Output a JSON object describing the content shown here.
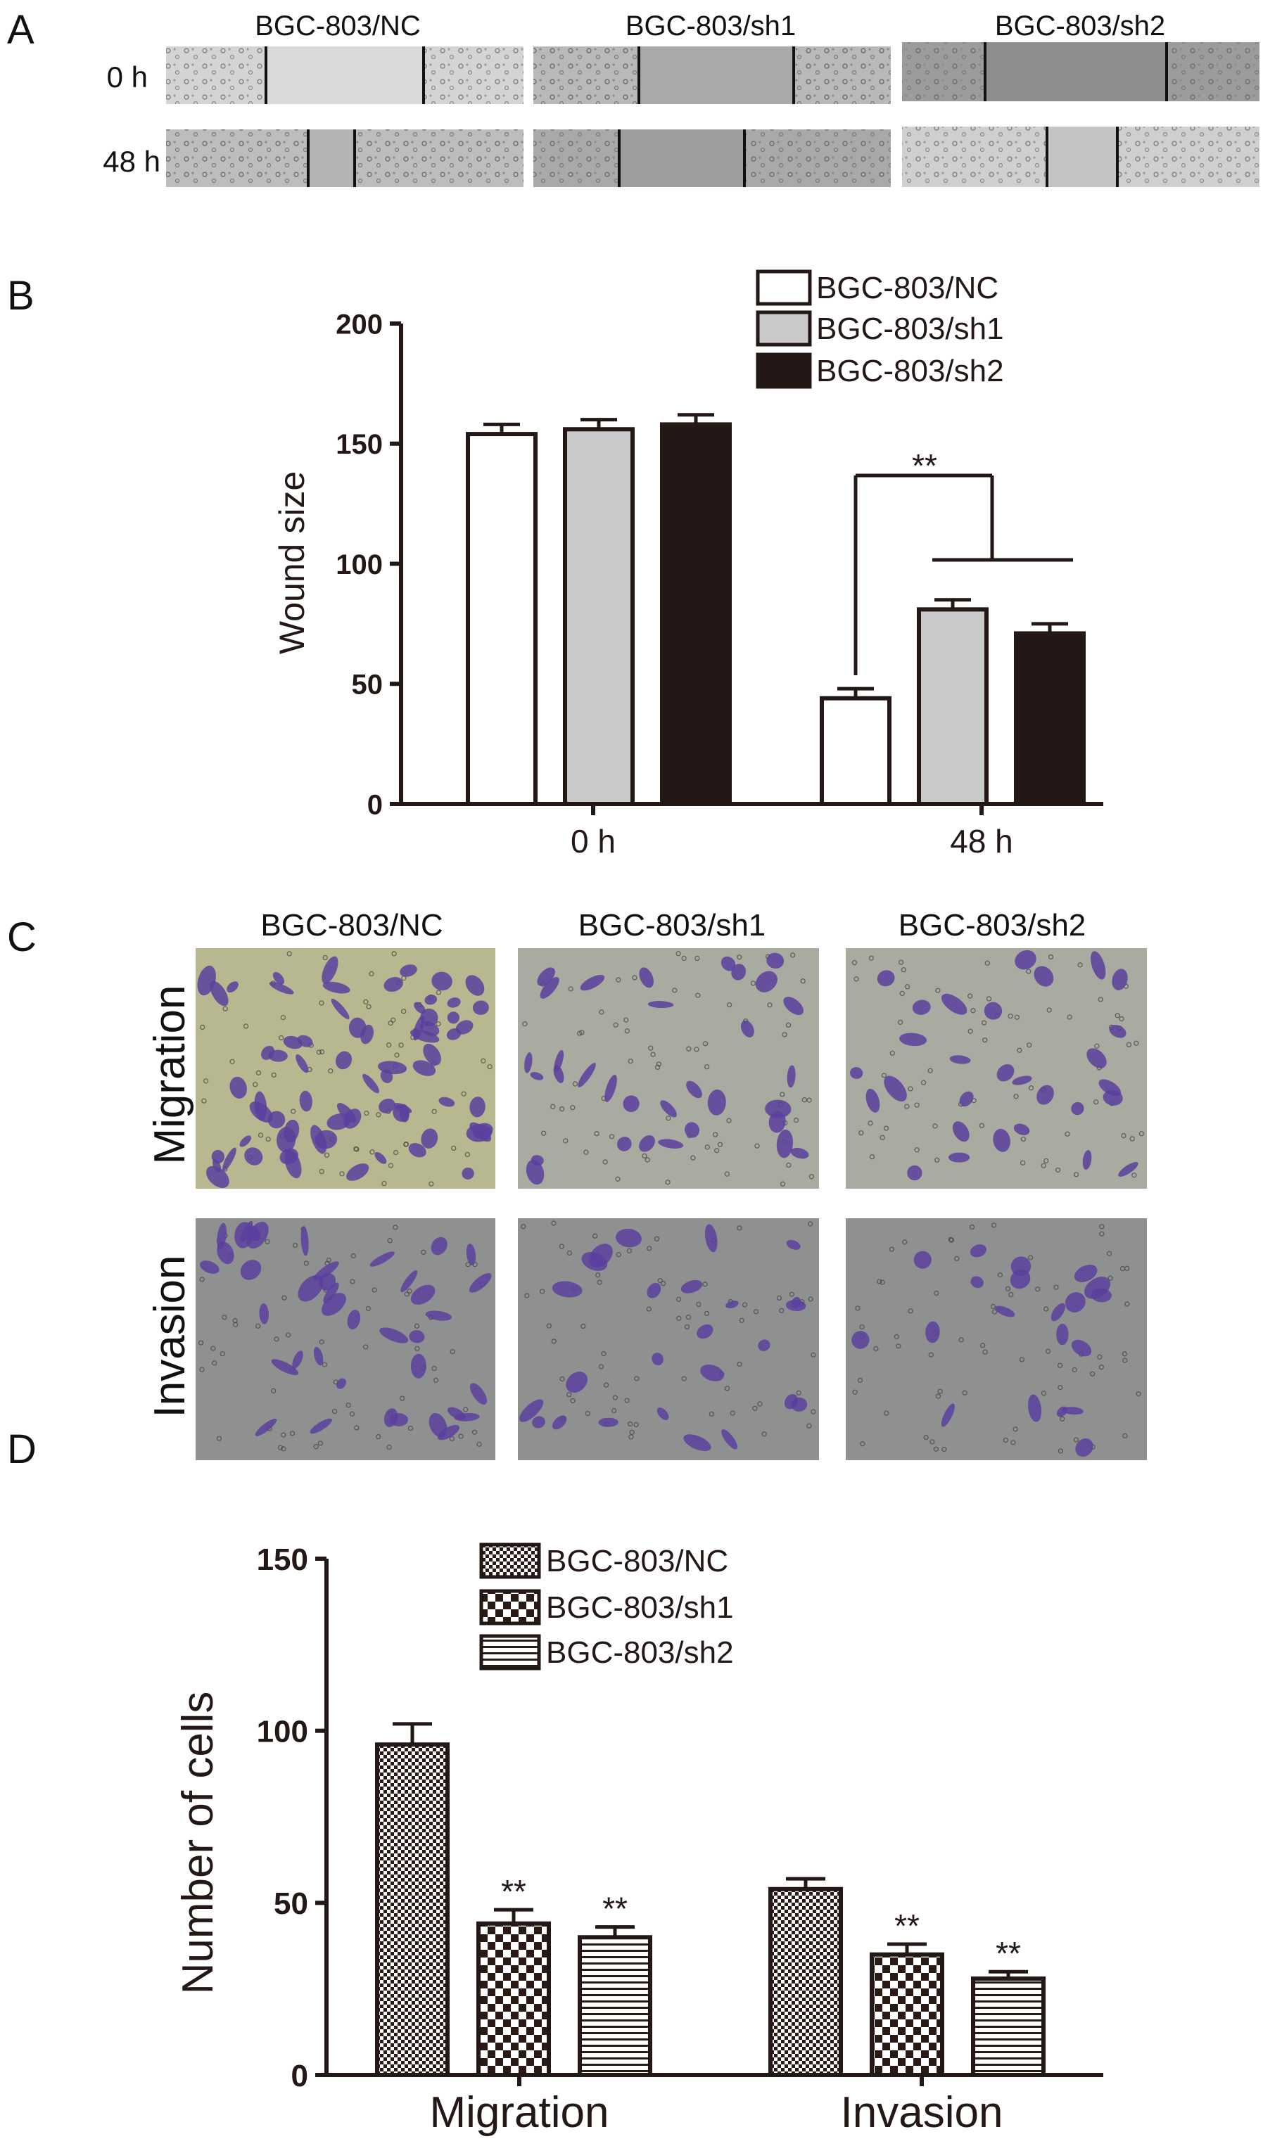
{
  "panel_labels": {
    "a": "A",
    "b": "B",
    "c": "C",
    "d": "D"
  },
  "panel_a": {
    "columns": [
      "BGC-803/NC",
      "BGC-803/sh1",
      "BGC-803/sh2"
    ],
    "rows": [
      "0 h",
      "48 h"
    ],
    "colors": {
      "micrograph_light": "#d6d6d6",
      "micrograph_dark": "#9a9a9a",
      "wound_gap": "#c2c2c2",
      "edge_line": "#111111"
    }
  },
  "panel_c": {
    "columns": [
      "BGC-803/NC",
      "BGC-803/sh1",
      "BGC-803/sh2"
    ],
    "rows": [
      "Migration",
      "Invasion"
    ],
    "colors": {
      "migration_bg_nc": "#b7b88f",
      "migration_bg": "#a9aba0",
      "invasion_bg": "#8f9190",
      "cell_stain": "#5a3f9e"
    },
    "relative_cell_density": [
      [
        1.0,
        0.45,
        0.42
      ],
      [
        0.55,
        0.36,
        0.29
      ]
    ]
  },
  "chart_data": [
    {
      "type": "bar",
      "panel": "B",
      "categories": [
        "0 h",
        "48 h"
      ],
      "series": [
        {
          "name": "BGC-803/NC",
          "values": [
            154,
            44
          ],
          "errors": [
            4,
            4
          ],
          "fill": "#ffffff"
        },
        {
          "name": "BGC-803/sh1",
          "values": [
            156,
            81
          ],
          "errors": [
            4,
            4
          ],
          "fill": "#c9c9c9"
        },
        {
          "name": "BGC-803/sh2",
          "values": [
            158,
            71
          ],
          "errors": [
            4,
            4
          ],
          "fill": "#231815"
        }
      ],
      "ylabel": "Wound size",
      "xlabel": "",
      "ylim": [
        0,
        200
      ],
      "yticks": [
        0,
        50,
        100,
        150,
        200
      ],
      "annotations": [
        {
          "text": "**",
          "category": "48 h",
          "compare": "BGC-803/NC vs BGC-803/sh1, BGC-803/sh2"
        }
      ],
      "legend": "top-right",
      "grid": false
    },
    {
      "type": "bar",
      "panel": "D",
      "categories": [
        "Migration",
        "Invasion"
      ],
      "series": [
        {
          "name": "BGC-803/NC",
          "values": [
            96,
            54
          ],
          "errors": [
            6,
            3
          ],
          "pattern": "checker-fine",
          "stars": [
            "",
            ""
          ]
        },
        {
          "name": "BGC-803/sh1",
          "values": [
            44,
            35
          ],
          "errors": [
            4,
            3
          ],
          "pattern": "checker-coarse",
          "stars": [
            "**",
            "**"
          ]
        },
        {
          "name": "BGC-803/sh2",
          "values": [
            40,
            28
          ],
          "errors": [
            3,
            2
          ],
          "pattern": "horizontal-stripes",
          "stars": [
            "**",
            "**"
          ]
        }
      ],
      "ylabel": "Number of cells",
      "xlabel": "",
      "ylim": [
        0,
        150
      ],
      "yticks": [
        0,
        50,
        100,
        150
      ],
      "legend": "top-center",
      "grid": false
    }
  ]
}
